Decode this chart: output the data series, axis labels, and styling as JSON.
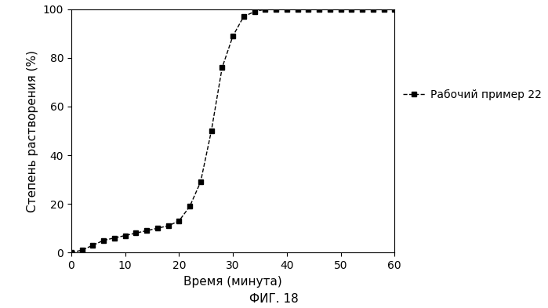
{
  "x": [
    0,
    2,
    4,
    6,
    8,
    10,
    12,
    14,
    16,
    18,
    20,
    22,
    24,
    26,
    28,
    30,
    32,
    34,
    36,
    38,
    40,
    42,
    44,
    46,
    48,
    50,
    52,
    54,
    56,
    58,
    60
  ],
  "y": [
    0,
    1,
    3,
    5,
    6,
    7,
    8,
    9,
    10,
    11,
    13,
    19,
    29,
    50,
    76,
    89,
    97,
    99,
    100,
    100,
    100,
    100,
    100,
    100,
    100,
    100,
    100,
    100,
    100,
    100,
    100
  ],
  "xlabel": "Время (минута)",
  "ylabel": "Степень растворения (%)",
  "legend_label": "Рабочий пример 22",
  "fig_label": "ФИГ. 18",
  "xlim": [
    0,
    60
  ],
  "ylim": [
    0,
    100
  ],
  "xticks": [
    0,
    10,
    20,
    30,
    40,
    50,
    60
  ],
  "yticks": [
    0,
    20,
    40,
    60,
    80,
    100
  ],
  "line_color": "#000000",
  "marker": "s",
  "marker_size": 5,
  "line_style": "--",
  "line_width": 1.0,
  "background_color": "#ffffff",
  "label_fontsize": 11,
  "tick_fontsize": 10,
  "legend_fontsize": 10,
  "figlabel_fontsize": 11
}
